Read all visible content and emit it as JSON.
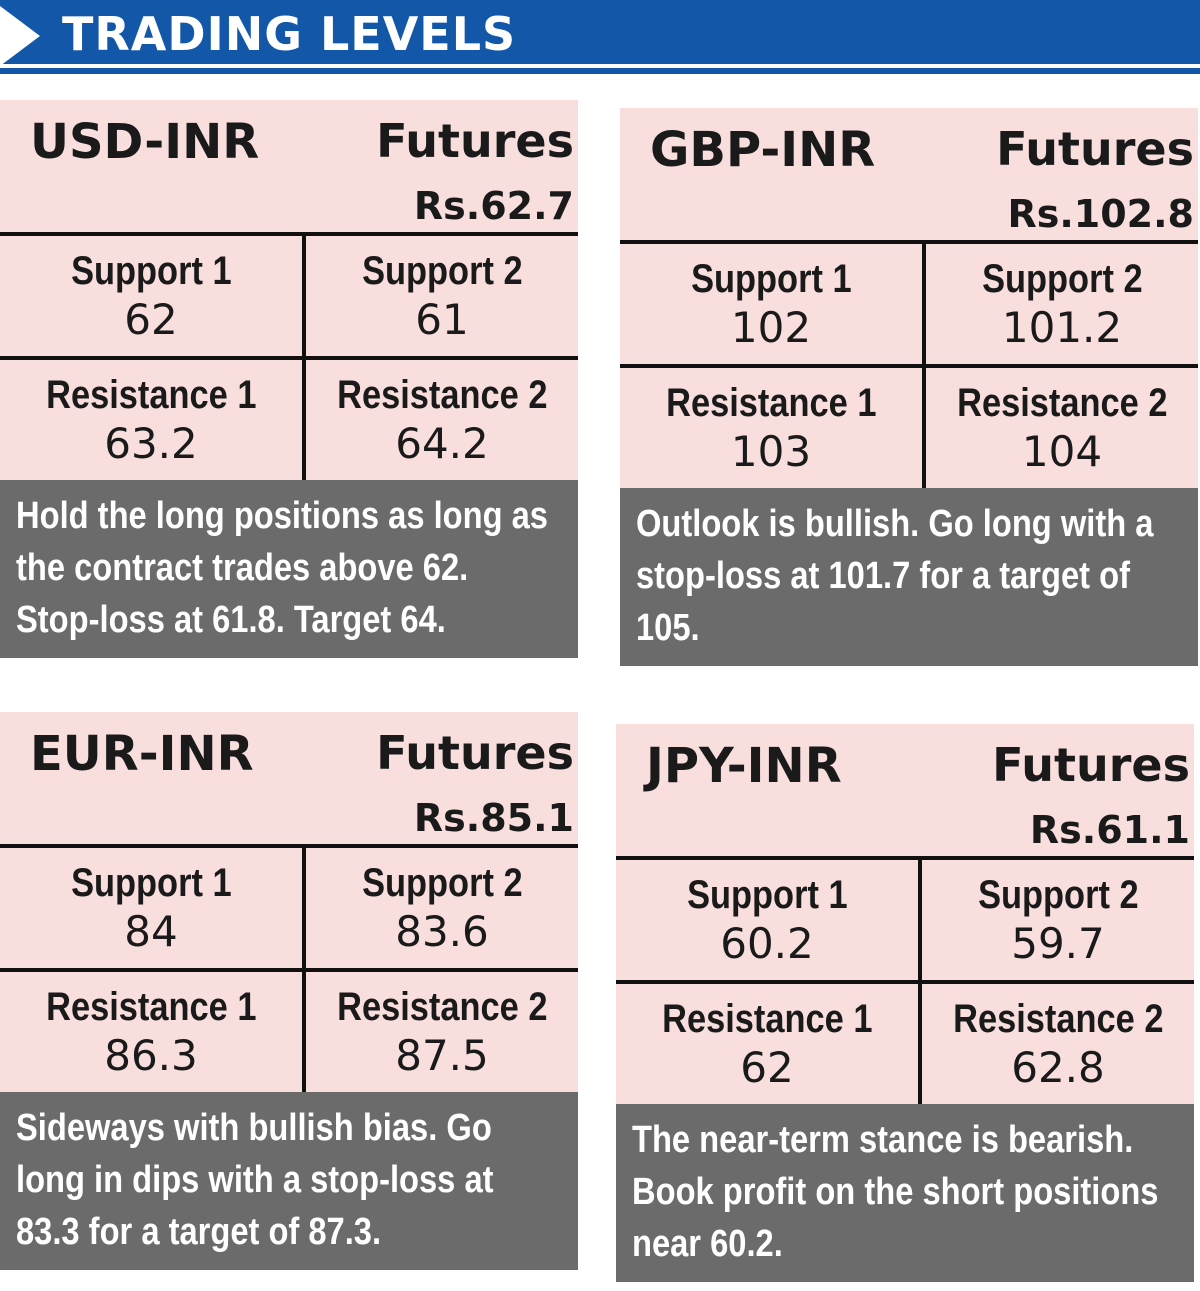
{
  "header": {
    "title": "TRADING LEVELS"
  },
  "panels": [
    {
      "pair": "USD-INR",
      "futures_label": "Futures",
      "futures_price": "Rs.62.7",
      "support1_label": "Support 1",
      "support1_value": "62",
      "support2_label": "Support 2",
      "support2_value": "61",
      "resistance1_label": "Resistance 1",
      "resistance1_value": "63.2",
      "resistance2_label": "Resistance 2",
      "resistance2_value": "64.2",
      "note_lines": [
        "Hold the long positions as long as",
        "the contract trades above 62.",
        "Stop-loss at 61.8. Target 64."
      ]
    },
    {
      "pair": "GBP-INR",
      "futures_label": "Futures",
      "futures_price": "Rs.102.8",
      "support1_label": "Support 1",
      "support1_value": "102",
      "support2_label": "Support 2",
      "support2_value": "101.2",
      "resistance1_label": "Resistance 1",
      "resistance1_value": "103",
      "resistance2_label": "Resistance 2",
      "resistance2_value": "104",
      "note_lines": [
        "Outlook is bullish. Go long with a",
        "stop-loss at 101.7 for a target of",
        "105."
      ]
    },
    {
      "pair": "EUR-INR",
      "futures_label": "Futures",
      "futures_price": "Rs.85.1",
      "support1_label": "Support 1",
      "support1_value": "84",
      "support2_label": "Support 2",
      "support2_value": "83.6",
      "resistance1_label": "Resistance 1",
      "resistance1_value": "86.3",
      "resistance2_label": "Resistance 2",
      "resistance2_value": "87.5",
      "note_lines": [
        "Sideways with bullish bias. Go",
        "long in dips with a stop-loss at",
        "83.3 for a target of 87.3."
      ]
    },
    {
      "pair": "JPY-INR",
      "futures_label": "Futures",
      "futures_price": "Rs.61.1",
      "support1_label": "Support 1",
      "support1_value": "60.2",
      "support2_label": "Support 2",
      "support2_value": "59.7",
      "resistance1_label": "Resistance 1",
      "resistance1_value": "62",
      "resistance2_label": "Resistance 2",
      "resistance2_value": "62.8",
      "note_lines": [
        "The near-term stance is bearish.",
        "Book profit on the short positions",
        "near 60.2."
      ]
    }
  ]
}
